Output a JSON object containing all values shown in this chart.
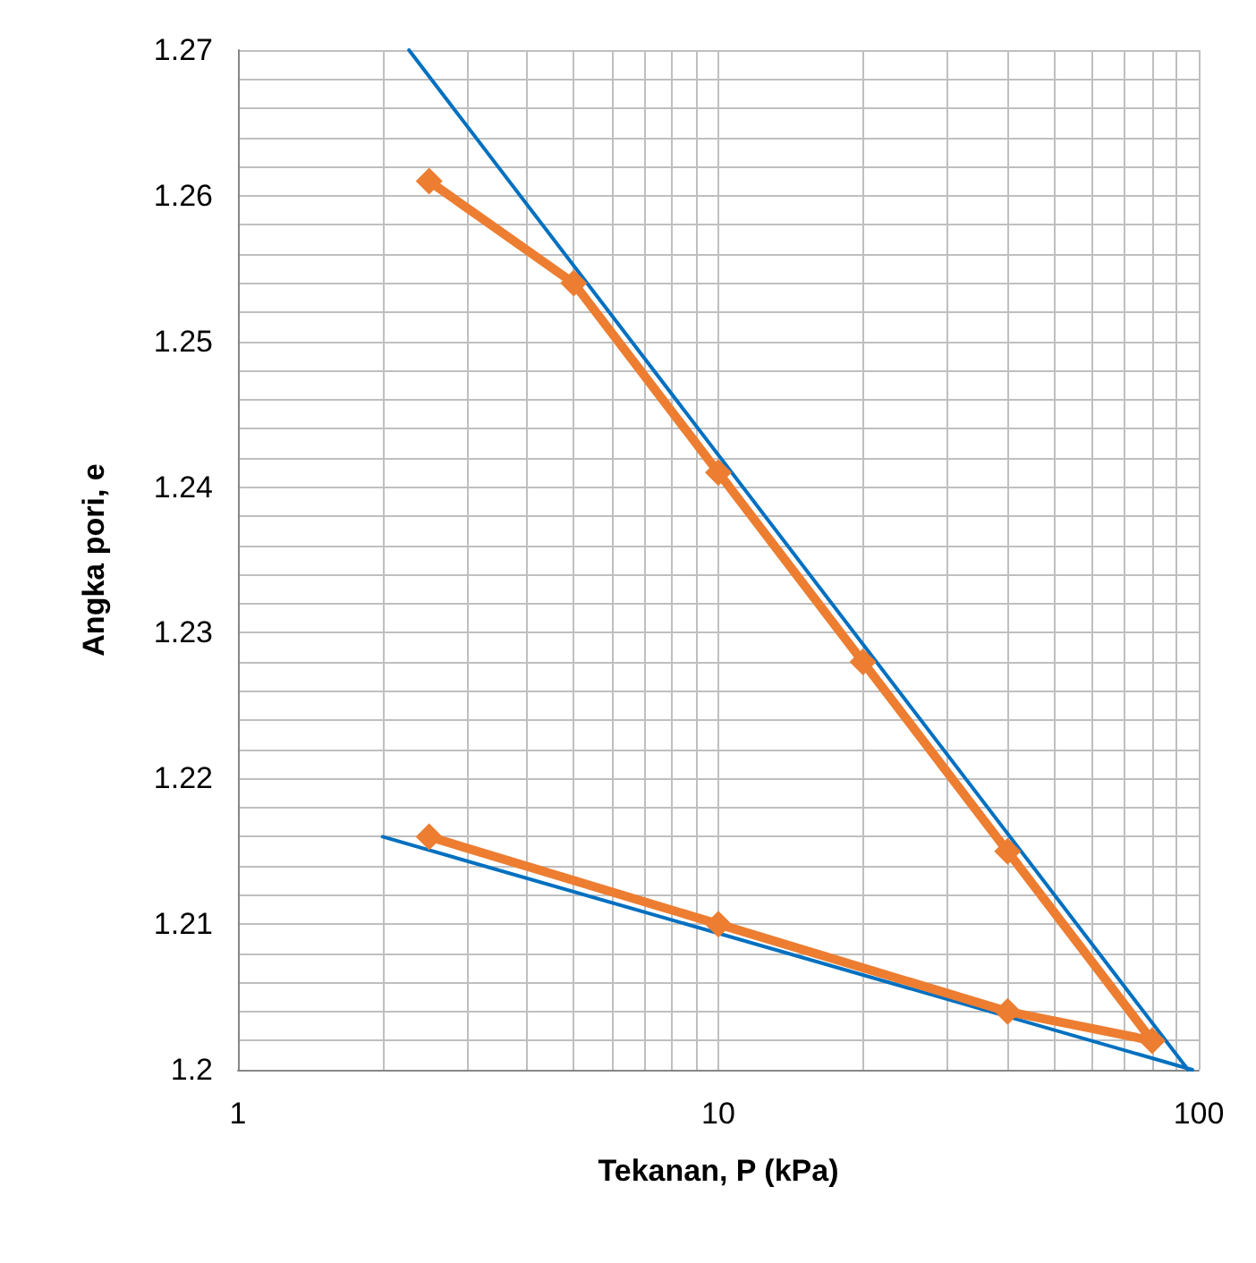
{
  "chart_data": {
    "type": "line",
    "xlabel": "Tekanan, P (kPa)",
    "ylabel": "Angka pori, e",
    "log": "x",
    "xlim": [
      1,
      100
    ],
    "xticks": [
      1,
      10,
      100
    ],
    "ylim": [
      1.2,
      1.27
    ],
    "yticks": [
      1.2,
      1.21,
      1.22,
      1.23,
      1.24,
      1.25,
      1.26,
      1.27
    ],
    "grid": true,
    "marker": "diamond",
    "series": [
      {
        "color": "#0070c0",
        "marker": "none",
        "x": [
          2.27,
          95
        ],
        "values": [
          1.27,
          1.2
        ]
      },
      {
        "color": "#0070c0",
        "marker": "none",
        "x": [
          2,
          97
        ],
        "values": [
          1.216,
          1.2
        ]
      },
      {
        "color": "#ed7d31",
        "x": [
          2.5,
          5,
          10,
          20,
          40,
          80,
          40,
          10,
          2.5
        ],
        "values": [
          1.261,
          1.254,
          1.241,
          1.228,
          1.215,
          1.202,
          1.204,
          1.21,
          1.216
        ]
      }
    ]
  }
}
